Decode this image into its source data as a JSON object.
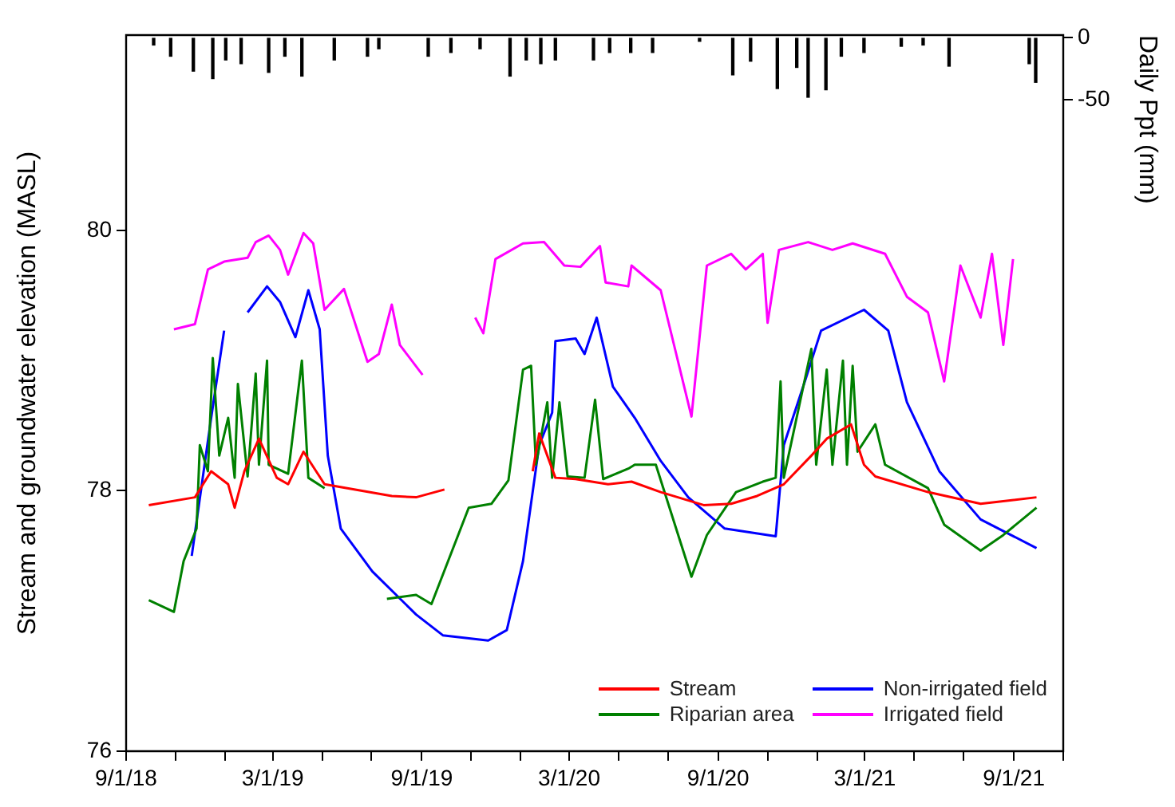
{
  "chart_data": {
    "type": "line",
    "ylabel": "Stream and groundwater elevation (MASL)",
    "y2label": "Daily Ppt (mm)",
    "xlim": [
      "2018-09-01",
      "2021-11-01"
    ],
    "xticks": [
      {
        "value": "2018-09-01",
        "label": "9/1/18"
      },
      {
        "value": "2018-11-01",
        "label": null
      },
      {
        "value": "2019-01-01",
        "label": null
      },
      {
        "value": "2019-03-01",
        "label": "3/1/19"
      },
      {
        "value": "2019-05-01",
        "label": null
      },
      {
        "value": "2019-07-01",
        "label": null
      },
      {
        "value": "2019-09-01",
        "label": "9/1/19"
      },
      {
        "value": "2019-11-01",
        "label": null
      },
      {
        "value": "2020-01-01",
        "label": null
      },
      {
        "value": "2020-03-01",
        "label": "3/1/20"
      },
      {
        "value": "2020-05-01",
        "label": null
      },
      {
        "value": "2020-07-01",
        "label": null
      },
      {
        "value": "2020-09-01",
        "label": "9/1/20"
      },
      {
        "value": "2020-11-01",
        "label": null
      },
      {
        "value": "2021-01-01",
        "label": null
      },
      {
        "value": "2021-03-01",
        "label": "3/1/21"
      },
      {
        "value": "2021-05-01",
        "label": null
      },
      {
        "value": "2021-07-01",
        "label": null
      },
      {
        "value": "2021-09-01",
        "label": "9/1/21"
      },
      {
        "value": "2021-11-01",
        "label": null
      }
    ],
    "ylim": [
      76,
      81.5
    ],
    "yticks": [
      76,
      78,
      80
    ],
    "y2lim": [
      -574,
      2
    ],
    "y2ticks": [
      0,
      -50
    ],
    "grid": false,
    "legend": "bottom right",
    "marker": "none",
    "line_style": "solid",
    "series": [
      {
        "name": "Stream",
        "color": "#ff0000",
        "x": [
          "2018-09-29",
          "2018-11-25",
          "2018-12-15",
          "2019-01-05",
          "2019-01-13",
          "2019-01-25",
          "2019-02-12",
          "2019-03-06",
          "2019-03-20",
          "2019-04-08",
          "2019-05-04",
          "2019-07-26",
          "2019-08-25",
          "2019-09-29",
          "2019-11-15",
          "2020-01-16",
          "2020-01-24",
          "2020-02-13",
          "2020-03-09",
          "2020-04-18",
          "2020-05-17",
          "2020-06-22",
          "2020-08-14",
          "2020-09-17",
          "2020-10-19",
          "2020-11-21",
          "2020-12-25",
          "2021-01-13",
          "2021-02-12",
          "2021-02-28",
          "2021-03-14",
          "2021-05-18",
          "2021-07-22",
          "2021-09-29"
        ],
        "values": [
          77.89,
          77.95,
          78.15,
          78.05,
          77.87,
          78.15,
          78.4,
          78.1,
          78.05,
          78.3,
          78.05,
          77.96,
          77.95,
          78.01,
          null,
          78.15,
          78.44,
          78.1,
          78.09,
          78.05,
          78.07,
          77.99,
          77.89,
          77.9,
          77.96,
          78.05,
          78.27,
          78.4,
          78.51,
          78.2,
          78.11,
          77.99,
          77.9,
          77.95
        ]
      },
      {
        "name": "Riparian area",
        "color": "#008000",
        "x": [
          "2018-09-29",
          "2018-10-30",
          "2018-11-11",
          "2018-11-27",
          "2018-12-01",
          "2018-12-11",
          "2018-12-17",
          "2018-12-25",
          "2019-01-05",
          "2019-01-13",
          "2019-01-17",
          "2019-01-29",
          "2019-02-08",
          "2019-02-12",
          "2019-02-22",
          "2019-02-24",
          "2019-03-20",
          "2019-04-06",
          "2019-04-14",
          "2019-05-04",
          "2019-06-10",
          "2019-07-20",
          "2019-08-25",
          "2019-09-13",
          "2019-10-29",
          "2019-11-26",
          "2019-12-17",
          "2020-01-04",
          "2020-01-14",
          "2020-01-20",
          "2020-02-03",
          "2020-02-09",
          "2020-02-18",
          "2020-02-28",
          "2020-03-20",
          "2020-04-02",
          "2020-04-12",
          "2020-05-13",
          "2020-05-21",
          "2020-06-16",
          "2020-07-30",
          "2020-08-18",
          "2020-09-23",
          "2020-10-26",
          "2020-11-11",
          "2020-11-17",
          "2020-11-21",
          "2020-12-25",
          "2020-12-31",
          "2021-01-13",
          "2021-01-20",
          "2021-02-02",
          "2021-02-07",
          "2021-02-14",
          "2021-02-20",
          "2021-03-14",
          "2021-03-26",
          "2021-05-18",
          "2021-06-07",
          "2021-07-22",
          "2021-08-19",
          "2021-09-29"
        ],
        "values": [
          77.16,
          77.07,
          77.46,
          77.71,
          78.35,
          78.15,
          79.02,
          78.27,
          78.56,
          78.1,
          78.82,
          78.11,
          78.9,
          78.2,
          79.0,
          78.2,
          78.13,
          79.0,
          78.1,
          78.02,
          null,
          77.17,
          77.2,
          77.13,
          77.87,
          77.9,
          78.08,
          78.93,
          78.96,
          78.2,
          78.68,
          78.1,
          78.68,
          78.11,
          78.1,
          78.7,
          78.09,
          78.17,
          78.2,
          78.2,
          77.34,
          77.66,
          77.99,
          78.07,
          78.1,
          78.84,
          78.1,
          79.09,
          78.2,
          78.93,
          78.2,
          79.0,
          78.2,
          78.96,
          78.3,
          78.51,
          78.2,
          78.02,
          77.74,
          77.54,
          77.66,
          77.87
        ]
      },
      {
        "name": "Non-irrigated field",
        "color": "#0000ff",
        "x": [
          "2018-11-21",
          "2018-12-15",
          "2018-12-31",
          "2019-01-15",
          "2019-01-29",
          "2019-02-22",
          "2019-03-10",
          "2019-03-29",
          "2019-04-14",
          "2019-04-28",
          "2019-05-08",
          "2019-05-24",
          "2019-07-02",
          "2019-08-25",
          "2019-09-27",
          "2019-11-22",
          "2019-12-15",
          "2020-01-04",
          "2020-01-24",
          "2020-02-09",
          "2020-02-13",
          "2020-03-09",
          "2020-03-20",
          "2020-04-04",
          "2020-04-24",
          "2020-05-21",
          "2020-06-22",
          "2020-07-26",
          "2020-09-09",
          "2020-11-11",
          "2020-11-21",
          "2020-12-17",
          "2021-01-06",
          "2021-02-28",
          "2021-03-30",
          "2021-04-22",
          "2021-06-01",
          "2021-07-22",
          "2021-09-29"
        ],
        "values": [
          77.5,
          78.56,
          79.23,
          null,
          79.37,
          79.57,
          79.45,
          79.18,
          79.54,
          79.24,
          78.27,
          77.71,
          77.38,
          77.05,
          76.89,
          76.85,
          76.93,
          77.46,
          78.35,
          78.6,
          79.15,
          79.17,
          79.05,
          79.33,
          78.8,
          78.56,
          78.23,
          77.95,
          77.71,
          77.65,
          78.35,
          78.84,
          79.23,
          79.39,
          79.23,
          78.68,
          78.15,
          77.78,
          77.56
        ]
      },
      {
        "name": "Irrigated field",
        "color": "#ff00ff",
        "x": [
          "2018-10-30",
          "2018-11-25",
          "2018-12-11",
          "2018-12-31",
          "2019-01-29",
          "2019-02-08",
          "2019-02-24",
          "2019-03-10",
          "2019-03-20",
          "2019-04-08",
          "2019-04-20",
          "2019-05-04",
          "2019-05-28",
          "2019-06-26",
          "2019-07-10",
          "2019-07-26",
          "2019-08-05",
          "2019-09-02",
          "2019-10-10",
          "2019-11-06",
          "2019-11-16",
          "2019-12-01",
          "2020-01-04",
          "2020-01-30",
          "2020-02-24",
          "2020-03-15",
          "2020-04-08",
          "2020-04-15",
          "2020-05-13",
          "2020-05-17",
          "2020-06-22",
          "2020-07-30",
          "2020-08-18",
          "2020-09-17",
          "2020-10-05",
          "2020-10-26",
          "2020-11-01",
          "2020-11-15",
          "2020-12-21",
          "2021-01-20",
          "2021-02-14",
          "2021-03-26",
          "2021-04-22",
          "2021-05-18",
          "2021-06-07",
          "2021-06-27",
          "2021-07-22",
          "2021-08-05",
          "2021-08-19",
          "2021-08-31"
        ],
        "values": [
          79.24,
          79.28,
          79.7,
          79.76,
          79.79,
          79.91,
          79.96,
          79.85,
          79.66,
          79.98,
          79.9,
          79.39,
          79.55,
          78.99,
          79.05,
          79.43,
          79.12,
          78.89,
          null,
          79.33,
          79.21,
          79.78,
          79.9,
          79.91,
          79.73,
          79.72,
          79.88,
          79.6,
          79.57,
          79.73,
          79.54,
          78.57,
          79.73,
          79.82,
          79.7,
          79.82,
          79.29,
          79.85,
          79.91,
          79.85,
          79.9,
          79.82,
          79.49,
          79.37,
          78.84,
          79.73,
          79.33,
          79.82,
          79.12,
          79.78
        ]
      },
      {
        "type": "bar",
        "axis": "y2",
        "color": "#000000",
        "x": [
          "2018-10-05",
          "2018-10-26",
          "2018-11-23",
          "2018-12-17",
          "2019-01-02",
          "2019-01-21",
          "2019-02-24",
          "2019-03-16",
          "2019-04-06",
          "2019-05-16",
          "2019-06-26",
          "2019-07-10",
          "2019-09-09",
          "2019-10-07",
          "2019-11-12",
          "2019-12-19",
          "2020-01-08",
          "2020-01-26",
          "2020-02-13",
          "2020-03-31",
          "2020-04-20",
          "2020-05-16",
          "2020-06-12",
          "2020-08-09",
          "2020-09-19",
          "2020-10-11",
          "2020-11-13",
          "2020-12-07",
          "2020-12-21",
          "2021-01-12",
          "2021-01-31",
          "2021-02-28",
          "2021-04-15",
          "2021-05-12",
          "2021-06-13",
          "2021-09-20",
          "2021-09-28"
        ],
        "values": [
          -6,
          -15,
          -27,
          -33,
          -18,
          -21,
          -28,
          -15,
          -31,
          -18,
          -15,
          -9,
          -15,
          -12,
          -9,
          -31,
          -18,
          -21,
          -18,
          -18,
          -12,
          -12,
          -12,
          -3,
          -30,
          -19,
          -41,
          -24,
          -48,
          -42,
          -15,
          -12,
          -7,
          -6,
          -23,
          -21,
          -36
        ]
      }
    ]
  }
}
